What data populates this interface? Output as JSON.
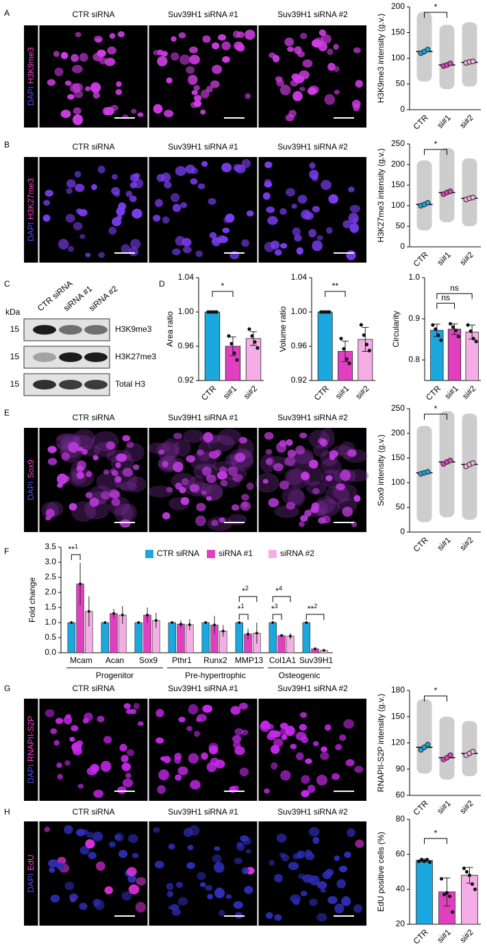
{
  "panel_letters": [
    "A",
    "B",
    "C",
    "D",
    "E",
    "F",
    "G",
    "H"
  ],
  "micrographs": [
    {
      "channels": [
        "DAPI",
        "H3K9me3"
      ],
      "columns": [
        "CTR siRNA",
        "Suv39H1 siRNA #1",
        "Suv39H1 siRNA #2"
      ]
    },
    {
      "channels": [
        "DAPI",
        "H3K27me3"
      ],
      "columns": [
        "CTR siRNA",
        "Suv39H1 siRNA #1",
        "Suv39H1 siRNA #2"
      ]
    },
    {
      "channels": [
        "DAPI",
        "Sox9"
      ],
      "columns": [
        "CTR siRNA",
        "Suv39H1 siRNA #1",
        "Suv39H1 siRNA #2"
      ]
    },
    {
      "channels": [
        "DAPI",
        "RNAPII-S2P"
      ],
      "columns": [
        "CTR siRNA",
        "Suv39H1 siRNA #1",
        "Suv39H1 siRNA #2"
      ]
    },
    {
      "channels": [
        "DAPI",
        "EdU"
      ],
      "columns": [
        "CTR siRNA",
        "Suv39H1 siRNA #1",
        "Suv39H1 siRNA #2"
      ]
    }
  ],
  "blot": {
    "unit": "kDa",
    "lanes": [
      "CTR siRNA",
      "siRNA #1",
      "siRNA #2"
    ],
    "rows": [
      {
        "marker": "15",
        "name": "H3K9me3"
      },
      {
        "marker": "15",
        "name": "H3K27me3"
      },
      {
        "marker": "15",
        "name": "Total H3"
      }
    ]
  },
  "chart_data": [
    {
      "type": "dot",
      "ylabel": "H3K9me3 intensity (g.v.)",
      "categories": [
        "CTR",
        "si#1",
        "si#2"
      ],
      "colors": [
        "#1ba8df",
        "#e23fc0",
        "#f5aee5"
      ],
      "replicates": [
        [
          110,
          113,
          117
        ],
        [
          85,
          87,
          90
        ],
        [
          91,
          93,
          94
        ]
      ],
      "means": [
        113,
        87,
        92
      ],
      "errors": [
        3,
        2,
        1.5
      ],
      "range": [
        [
          55,
          190
        ],
        [
          40,
          165
        ],
        [
          45,
          170
        ]
      ],
      "ylim": [
        0,
        200
      ],
      "yticks": [
        0,
        50,
        100,
        150,
        200
      ],
      "significance": [
        {
          "from": 0,
          "to": 1,
          "label": "*"
        }
      ]
    },
    {
      "type": "dot",
      "ylabel": "H3K27me3 intensity (g.v.)",
      "categories": [
        "CTR",
        "si#1",
        "si#2"
      ],
      "colors": [
        "#1ba8df",
        "#e23fc0",
        "#f5aee5"
      ],
      "replicates": [
        [
          100,
          103,
          107
        ],
        [
          128,
          132,
          135
        ],
        [
          115,
          118,
          120
        ]
      ],
      "means": [
        103,
        132,
        118
      ],
      "errors": [
        3,
        3,
        2
      ],
      "range": [
        [
          40,
          210
        ],
        [
          60,
          240
        ],
        [
          50,
          215
        ]
      ],
      "ylim": [
        0,
        250
      ],
      "yticks": [
        0,
        50,
        100,
        150,
        200,
        250
      ],
      "significance": [
        {
          "from": 0,
          "to": 1,
          "label": "*"
        }
      ]
    },
    {
      "type": "bar",
      "ylabel": "Area ratio",
      "categories": [
        "CTR",
        "si#1",
        "si#2"
      ],
      "colors": [
        "#1ba8df",
        "#e23fc0",
        "#f5aee5"
      ],
      "means": [
        1.0,
        0.96,
        0.969
      ],
      "errors": [
        0,
        0.011,
        0.008
      ],
      "replicates": [
        [
          1,
          1,
          1,
          1
        ],
        [
          0.972,
          0.963,
          0.952,
          0.944
        ],
        [
          0.98,
          0.972,
          0.965,
          0.958
        ]
      ],
      "ylim": [
        0.92,
        1.04
      ],
      "yticks": [
        0.92,
        0.96,
        {
          "value": 1,
          "label": "1.00"
        },
        1.04
      ],
      "significance": [
        {
          "from": 0,
          "to": 1,
          "label": "*"
        }
      ]
    },
    {
      "type": "bar",
      "ylabel": "Volume ratio",
      "categories": [
        "CTR",
        "si#1",
        "si#2"
      ],
      "colors": [
        "#1ba8df",
        "#e23fc0",
        "#f5aee5"
      ],
      "means": [
        1.0,
        0.954,
        0.968
      ],
      "errors": [
        0,
        0.012,
        0.014
      ],
      "replicates": [
        [
          1,
          1,
          1,
          1
        ],
        [
          0.969,
          0.957,
          0.945,
          0.94
        ],
        [
          0.985,
          0.973,
          0.962,
          0.955
        ]
      ],
      "ylim": [
        0.92,
        1.04
      ],
      "yticks": [
        0.92,
        0.96,
        {
          "value": 1,
          "label": "1.00"
        },
        1.04
      ],
      "significance": [
        {
          "from": 0,
          "to": 1,
          "label": "**"
        }
      ]
    },
    {
      "type": "bar",
      "ylabel": "Circularity",
      "categories": [
        "CTR",
        "si#1",
        "si#2"
      ],
      "colors": [
        "#1ba8df",
        "#e23fc0",
        "#f5aee5"
      ],
      "means": [
        0.872,
        0.875,
        0.868
      ],
      "errors": [
        0.015,
        0.013,
        0.017
      ],
      "replicates": [
        [
          0.885,
          0.875,
          0.86,
          0.848
        ],
        [
          0.888,
          0.88,
          0.872,
          0.857
        ],
        [
          0.885,
          0.87,
          0.852,
          0.845
        ]
      ],
      "ylim": [
        0.75,
        1.0
      ],
      "yticks": [
        0.8,
        0.9,
        {
          "value": 1,
          "label": "1.0"
        }
      ],
      "significance": [
        {
          "from": 0,
          "to": 1,
          "label": "ns"
        },
        {
          "from": 0,
          "to": 2,
          "label": "ns"
        }
      ]
    },
    {
      "type": "dot",
      "ylabel": "Sox9 intensity (g.v.)",
      "categories": [
        "CTR",
        "si#1",
        "si#2"
      ],
      "colors": [
        "#1ba8df",
        "#e23fc0",
        "#f5aee5"
      ],
      "replicates": [
        [
          118,
          120,
          122
        ],
        [
          138,
          142,
          145
        ],
        [
          133,
          137,
          140
        ]
      ],
      "means": [
        120,
        142,
        137
      ],
      "errors": [
        2,
        3,
        3
      ],
      "range": [
        [
          20,
          215
        ],
        [
          30,
          245
        ],
        [
          25,
          240
        ]
      ],
      "ylim": [
        0,
        250
      ],
      "yticks": [
        0,
        50,
        100,
        150,
        200,
        250
      ],
      "significance": [
        {
          "from": 0,
          "to": 1,
          "label": "*"
        }
      ]
    },
    {
      "type": "grouped_bar",
      "ylabel": "Fold change",
      "categories": [
        "Mcam",
        "Acan",
        "Sox9",
        "Pthr1",
        "Runx2",
        "MMP13",
        "Col1A1",
        "Suv39H1"
      ],
      "groups": [
        {
          "name": "Progenitor",
          "from": 0,
          "to": 2
        },
        {
          "name": "Pre-hypertrophic",
          "from": 3,
          "to": 5
        },
        {
          "name": "Osteogenic",
          "from": 6,
          "to": 7
        }
      ],
      "series": [
        {
          "name": "CTR siRNA",
          "color": "#1ba8df",
          "values": [
            1,
            1,
            1,
            1,
            1,
            1,
            1,
            1
          ],
          "errors": [
            0,
            0,
            0,
            0,
            0,
            0,
            0,
            0
          ]
        },
        {
          "name": "siRNA #1",
          "color": "#e23fc0",
          "values": [
            2.28,
            1.3,
            1.25,
            0.95,
            0.92,
            0.62,
            0.57,
            0.13
          ],
          "errors": [
            0.7,
            0.15,
            0.25,
            0.12,
            0.3,
            0.18,
            0.05,
            0.03
          ]
        },
        {
          "name": "siRNA #2",
          "color": "#f5aee5",
          "values": [
            1.37,
            1.25,
            1.07,
            0.93,
            0.72,
            0.65,
            0.55,
            0.08
          ],
          "errors": [
            0.5,
            0.3,
            0.25,
            0.18,
            0.2,
            0.35,
            0.1,
            0.03
          ]
        }
      ],
      "ylim": [
        0,
        3.5
      ],
      "yticks": [
        {
          "value": 0,
          "label": "0.0"
        },
        0.5,
        {
          "value": 1,
          "label": "1.0"
        },
        1.5,
        {
          "value": 2,
          "label": "2.0"
        },
        2.5,
        {
          "value": 3,
          "label": "3.0"
        },
        3.5
      ],
      "significance": [
        {
          "category": 0,
          "from": 0,
          "to": 1,
          "label": "**",
          "sup": "1"
        },
        {
          "category": 5,
          "from": 0,
          "to": 1,
          "label": "*",
          "sup": "1"
        },
        {
          "category": 5,
          "from": 0,
          "to": 2,
          "label": "*",
          "sup": "2"
        },
        {
          "category": 6,
          "from": 0,
          "to": 1,
          "label": "*",
          "sup": "3"
        },
        {
          "category": 6,
          "from": 0,
          "to": 2,
          "label": "*",
          "sup": "4"
        },
        {
          "category": 7,
          "from": 0,
          "to": 2,
          "label": "**",
          "sup": "2"
        }
      ]
    },
    {
      "type": "dot",
      "ylabel": "RNAPII-S2P intensity (g.v.)",
      "categories": [
        "CTR",
        "si#1",
        "si#2"
      ],
      "colors": [
        "#1ba8df",
        "#e23fc0",
        "#f5aee5"
      ],
      "replicates": [
        [
          112,
          115,
          118
        ],
        [
          101,
          103,
          106
        ],
        [
          106,
          108,
          110
        ]
      ],
      "means": [
        115,
        103,
        108
      ],
      "errors": [
        3,
        2.5,
        2
      ],
      "range": [
        [
          85,
          170
        ],
        [
          78,
          150
        ],
        [
          82,
          145
        ]
      ],
      "ylim": [
        60,
        180
      ],
      "yticks": [
        60,
        90,
        120,
        150,
        180
      ],
      "significance": [
        {
          "from": 0,
          "to": 1,
          "label": "*"
        }
      ]
    },
    {
      "type": "bar",
      "ylabel": "EdU positive cells (%)",
      "categories": [
        "CTR",
        "si#1",
        "si#2"
      ],
      "colors": [
        "#1ba8df",
        "#e23fc0",
        "#f5aee5"
      ],
      "means": [
        56.5,
        38.5,
        48
      ],
      "errors": [
        0.8,
        8,
        4.5
      ],
      "replicates": [
        [
          56,
          57,
          56,
          57,
          55.5
        ],
        [
          46,
          37,
          38,
          36,
          27
        ],
        [
          52,
          50,
          48,
          43,
          40
        ]
      ],
      "ylim": [
        20,
        80
      ],
      "yticks": [
        20,
        40,
        60,
        80
      ],
      "significance": [
        {
          "from": 0,
          "to": 1,
          "label": "*"
        }
      ]
    }
  ]
}
